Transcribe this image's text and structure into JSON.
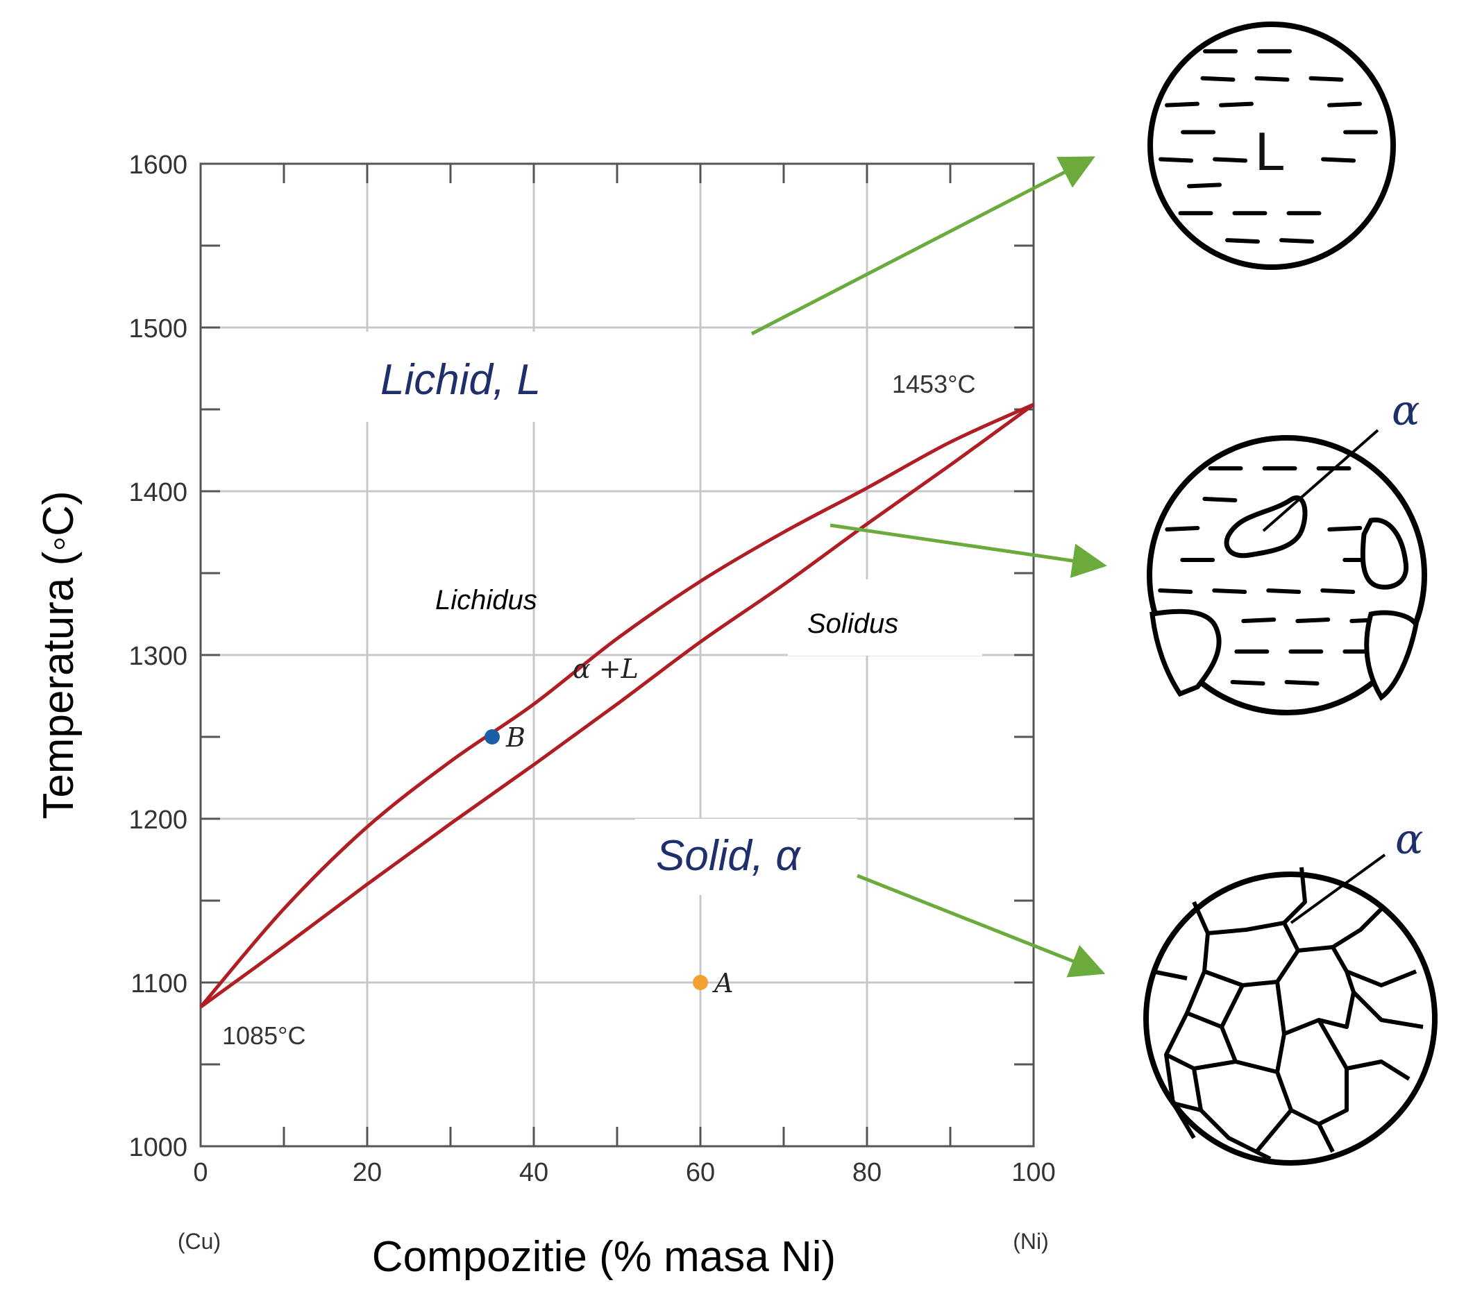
{
  "chart_data": {
    "type": "line",
    "xlabel": "Compozitie (% masa Ni)",
    "ylabel": "Temperatura (◦C)",
    "xlim": [
      0,
      100
    ],
    "ylim": [
      1000,
      1600
    ],
    "x_ticks": [
      "0",
      "20",
      "40",
      "60",
      "80",
      "100"
    ],
    "y_ticks": [
      "1000",
      "1100",
      "1200",
      "1300",
      "1400",
      "1500",
      "1600"
    ],
    "x_end_labels": {
      "left": "(Cu)",
      "right": "(Ni)"
    },
    "grid": true,
    "colors": {
      "curve": "#b01e23",
      "point_A": "#f5a031",
      "point_B": "#1a5ea8",
      "arrow": "#6aab3c"
    },
    "series": [
      {
        "name": "Lichidus",
        "x": [
          0,
          10,
          20,
          30,
          40,
          50,
          60,
          70,
          80,
          90,
          100
        ],
        "y": [
          1085,
          1145,
          1195,
          1235,
          1270,
          1310,
          1345,
          1375,
          1402,
          1430,
          1453
        ]
      },
      {
        "name": "Solidus",
        "x": [
          0,
          10,
          20,
          30,
          40,
          50,
          60,
          70,
          80,
          90,
          100
        ],
        "y": [
          1085,
          1122,
          1160,
          1197,
          1233,
          1270,
          1308,
          1343,
          1380,
          1416,
          1453
        ]
      }
    ],
    "points": [
      {
        "label": "A",
        "x": 60,
        "y": 1100
      },
      {
        "label": "B",
        "x": 35,
        "y": 1250
      }
    ],
    "annotations": {
      "liquid_region": "Lichid, L",
      "solid_region": "Solid, α",
      "two_phase": "α +L",
      "liquidus": "Lichidus",
      "solidus": "Solidus",
      "melt_ni": "1453°C",
      "melt_cu": "1085°C"
    }
  },
  "micrographs": {
    "liquid_label": "L",
    "alpha_label_1": "α",
    "alpha_label_2": "α"
  }
}
